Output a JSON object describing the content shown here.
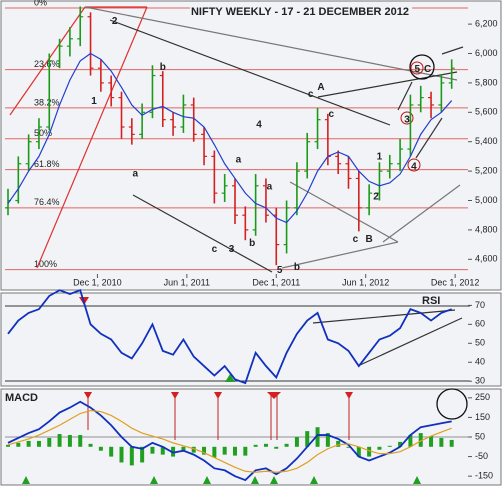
{
  "chart_data": [
    {
      "type": "ohlc",
      "title": "NIFTY WEEKLY - 17 - 21 DECEMBER 2012",
      "x": [
        0,
        3,
        6,
        9,
        12,
        15,
        18,
        21,
        24,
        27,
        30,
        33,
        36,
        39,
        42,
        45,
        48,
        51,
        54,
        57,
        60,
        63,
        66,
        69,
        72,
        75,
        78,
        81,
        84,
        87,
        90,
        93,
        96,
        99,
        102,
        105,
        108,
        111,
        114,
        117,
        120,
        123,
        126,
        129
      ],
      "open": [
        4950,
        5000,
        5250,
        5400,
        5500,
        5950,
        6050,
        6100,
        6250,
        5900,
        5800,
        5700,
        5500,
        5450,
        5600,
        5850,
        5550,
        5500,
        5650,
        5450,
        5300,
        5050,
        5100,
        4900,
        4800,
        5100,
        4900,
        4700,
        4950,
        5200,
        5400,
        5550,
        5300,
        5250,
        5150,
        4950,
        5050,
        5200,
        5250,
        5350,
        5650,
        5700,
        5650,
        5800
      ],
      "high": [
        5080,
        5300,
        5450,
        5560,
        6000,
        6100,
        6180,
        6320,
        6280,
        5960,
        5850,
        5740,
        5560,
        5660,
        5920,
        5880,
        5600,
        5720,
        5700,
        5500,
        5340,
        5180,
        5150,
        4960,
        5180,
        5150,
        4950,
        5000,
        5260,
        5460,
        5630,
        5590,
        5340,
        5300,
        5200,
        5110,
        5260,
        5310,
        5420,
        5720,
        5780,
        5740,
        5860,
        5960
      ],
      "low": [
        4900,
        4980,
        5200,
        5350,
        5480,
        5900,
        5980,
        6050,
        5850,
        5740,
        5640,
        5420,
        5380,
        5420,
        5560,
        5500,
        5440,
        5460,
        5400,
        5240,
        4980,
        4990,
        4840,
        4730,
        4760,
        4850,
        4560,
        4640,
        4900,
        5150,
        5350,
        5240,
        5180,
        5080,
        4790,
        4900,
        5000,
        5150,
        5200,
        5300,
        5600,
        5560,
        5600,
        5760
      ],
      "close": [
        5000,
        5250,
        5400,
        5500,
        5950,
        6050,
        6100,
        6250,
        5900,
        5800,
        5700,
        5500,
        5450,
        5600,
        5850,
        5550,
        5500,
        5650,
        5450,
        5300,
        5050,
        5100,
        4900,
        4800,
        5100,
        4900,
        4700,
        4950,
        5200,
        5400,
        5550,
        5300,
        5250,
        5150,
        4950,
        5050,
        5200,
        5250,
        5350,
        5650,
        5700,
        5650,
        5800,
        5900
      ],
      "up_color": "#1a9a1a",
      "down_color": "#d42020",
      "ma_values": [
        4980,
        5080,
        5200,
        5300,
        5450,
        5650,
        5820,
        5950,
        6000,
        5960,
        5880,
        5770,
        5650,
        5580,
        5620,
        5640,
        5600,
        5570,
        5560,
        5500,
        5380,
        5250,
        5150,
        5050,
        4980,
        4950,
        4880,
        4850,
        4930,
        5050,
        5200,
        5300,
        5330,
        5300,
        5200,
        5130,
        5100,
        5120,
        5180,
        5300,
        5450,
        5550,
        5600,
        5680
      ],
      "ma_color": "#2040d0",
      "xlim": [
        0,
        132
      ],
      "xticks": [
        {
          "value": 26,
          "label": "Dec 1, 2010"
        },
        {
          "value": 52,
          "label": "Jun 1, 2011"
        },
        {
          "value": 78,
          "label": "Dec 1, 2011"
        },
        {
          "value": 104,
          "label": "Jun 1, 2012"
        },
        {
          "value": 130,
          "label": "Dec 1, 2012"
        }
      ],
      "ylim": [
        4500,
        6330
      ],
      "yticks": [
        {
          "value": 4600,
          "label": "4,600"
        },
        {
          "value": 4800,
          "label": "4,800"
        },
        {
          "value": 5000,
          "label": "5,000"
        },
        {
          "value": 5200,
          "label": "5,200"
        },
        {
          "value": 5400,
          "label": "5,400"
        },
        {
          "value": 5600,
          "label": "5,600"
        },
        {
          "value": 5800,
          "label": "5,800"
        },
        {
          "value": 6000,
          "label": "6,000"
        },
        {
          "value": 6200,
          "label": "6,200"
        }
      ],
      "fib_color": "#e04040",
      "fib_levels": [
        {
          "value": 6310,
          "label": "0%"
        },
        {
          "value": 5890,
          "label": "23.6%"
        },
        {
          "value": 5630,
          "label": "38.2%"
        },
        {
          "value": 5420,
          "label": "50%"
        },
        {
          "value": 5210,
          "label": "61.8%"
        },
        {
          "value": 4950,
          "label": "76.4%"
        },
        {
          "value": 4530,
          "label": "100%"
        }
      ],
      "annotations": [
        {
          "text": "1",
          "x": 25,
          "y": 5673,
          "color": "#2030c0"
        },
        {
          "text": "2",
          "x": 31,
          "y": 6220,
          "color": "#2030c0"
        },
        {
          "text": "a",
          "x": 37,
          "y": 5181,
          "color": "#c01010"
        },
        {
          "text": "b",
          "x": 45,
          "y": 5906,
          "color": "#c01010"
        },
        {
          "text": "c",
          "x": 60,
          "y": 4668,
          "color": "#c01010"
        },
        {
          "text": "3",
          "x": 65,
          "y": 4668,
          "color": "#2030c0"
        },
        {
          "text": "a",
          "x": 67,
          "y": 5277,
          "color": "#c01010"
        },
        {
          "text": "b",
          "x": 71,
          "y": 4709,
          "color": "#c01010"
        },
        {
          "text": "4",
          "x": 73,
          "y": 5516,
          "color": "#2030c0"
        },
        {
          "text": "a",
          "x": 76,
          "y": 5092,
          "color": "#c01010"
        },
        {
          "text": "5",
          "x": 79,
          "y": 4525,
          "color": "#2030c0"
        },
        {
          "text": "b",
          "x": 84,
          "y": 4545,
          "color": "#c01010"
        },
        {
          "text": "c",
          "x": 88,
          "y": 5721,
          "color": "#c01010"
        },
        {
          "text": "A",
          "x": 91,
          "y": 5769,
          "color": "#2030c0"
        },
        {
          "text": "c",
          "x": 94,
          "y": 5585,
          "color": "#c01010"
        },
        {
          "text": "c",
          "x": 101,
          "y": 4737,
          "color": "#c01010"
        },
        {
          "text": "B",
          "x": 105,
          "y": 4737,
          "color": "#2030c0"
        },
        {
          "text": "2",
          "x": 107,
          "y": 5024,
          "color": "#c01010"
        },
        {
          "text": "1",
          "x": 108,
          "y": 5297,
          "color": "#c01010"
        },
        {
          "text": "3",
          "x": 116,
          "y": 5550,
          "color": "#c01010"
        },
        {
          "text": "4",
          "x": 118,
          "y": 5229,
          "color": "#c01010"
        },
        {
          "text": "5",
          "x": 119,
          "y": 5892,
          "color": "#c01010"
        },
        {
          "text": "C",
          "x": 122,
          "y": 5892,
          "color": "#2030c0"
        }
      ]
    },
    {
      "type": "line",
      "label": "RSI",
      "x": [
        0,
        3,
        6,
        9,
        12,
        15,
        18,
        21,
        24,
        27,
        30,
        33,
        36,
        39,
        42,
        45,
        48,
        51,
        54,
        57,
        60,
        63,
        66,
        69,
        72,
        75,
        78,
        81,
        84,
        87,
        90,
        93,
        96,
        99,
        102,
        105,
        108,
        111,
        114,
        117,
        120,
        123,
        126,
        129
      ],
      "values": [
        55,
        62,
        66,
        68,
        75,
        78,
        76,
        78,
        60,
        55,
        52,
        45,
        42,
        50,
        60,
        46,
        44,
        52,
        43,
        38,
        33,
        38,
        31,
        29,
        45,
        38,
        32,
        45,
        55,
        62,
        66,
        52,
        50,
        46,
        38,
        45,
        52,
        54,
        58,
        68,
        66,
        62,
        66,
        68
      ],
      "color": "#1030c0",
      "xlim": [
        0,
        132
      ],
      "ylim": [
        28,
        76
      ],
      "yticks": [
        30,
        40,
        50,
        60,
        70
      ]
    },
    {
      "type": "macd",
      "label": "MACD",
      "x": [
        0,
        3,
        6,
        9,
        12,
        15,
        18,
        21,
        24,
        27,
        30,
        33,
        36,
        39,
        42,
        45,
        48,
        51,
        54,
        57,
        60,
        63,
        66,
        69,
        72,
        75,
        78,
        81,
        84,
        87,
        90,
        93,
        96,
        99,
        102,
        105,
        108,
        111,
        114,
        117,
        120,
        123,
        126,
        129
      ],
      "series": [
        {
          "color": "#1030c0",
          "values": [
            20,
            45,
            70,
            90,
            130,
            175,
            200,
            230,
            200,
            160,
            110,
            50,
            0,
            -10,
            20,
            0,
            -30,
            -20,
            -40,
            -70,
            -110,
            -120,
            -150,
            -170,
            -120,
            -110,
            -140,
            -110,
            -60,
            0,
            60,
            60,
            40,
            10,
            -50,
            -70,
            -50,
            -30,
            0,
            60,
            100,
            110,
            120,
            130
          ]
        },
        {
          "color": "#e0a020",
          "values": [
            10,
            25,
            40,
            60,
            85,
            110,
            140,
            170,
            185,
            180,
            160,
            130,
            95,
            70,
            55,
            40,
            20,
            5,
            -10,
            -30,
            -55,
            -80,
            -105,
            -125,
            -130,
            -125,
            -130,
            -125,
            -110,
            -80,
            -40,
            -10,
            10,
            15,
            0,
            -20,
            -35,
            -35,
            -25,
            0,
            30,
            55,
            75,
            95
          ]
        }
      ],
      "histogram": [
        10,
        20,
        30,
        30,
        45,
        65,
        60,
        60,
        15,
        -20,
        -50,
        -80,
        -95,
        -80,
        -35,
        -40,
        -50,
        -25,
        -30,
        -40,
        -55,
        -40,
        -45,
        -45,
        10,
        15,
        -10,
        15,
        50,
        80,
        100,
        70,
        30,
        -5,
        -50,
        -50,
        -15,
        5,
        25,
        60,
        70,
        55,
        45,
        35
      ],
      "histogram_color": "#20a020",
      "xlim": [
        0,
        132
      ],
      "ylim": [
        -190,
        290
      ],
      "yticks": [
        -150,
        -50,
        50,
        150,
        250
      ]
    }
  ]
}
